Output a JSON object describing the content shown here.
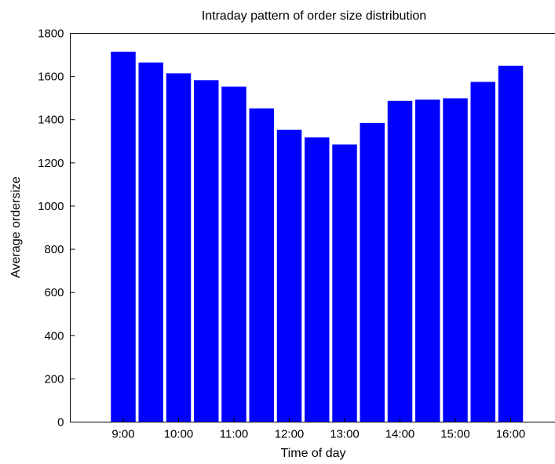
{
  "chart_data": {
    "type": "bar",
    "title": "Intraday pattern of order size distribution",
    "xlabel": "Time of day",
    "ylabel": "Average ordersize",
    "x_tick_labels": [
      "9:00",
      "10:00",
      "11:00",
      "12:00",
      "13:00",
      "14:00",
      "15:00",
      "16:00"
    ],
    "y_ticks": [
      0,
      200,
      400,
      600,
      800,
      1000,
      1200,
      1400,
      1600,
      1800
    ],
    "ylim": [
      0,
      1800
    ],
    "values": [
      1715,
      1665,
      1615,
      1583,
      1553,
      1452,
      1353,
      1318,
      1285,
      1385,
      1487,
      1493,
      1499,
      1575,
      1650
    ],
    "bar_color": "#0000ff",
    "grid": false
  }
}
